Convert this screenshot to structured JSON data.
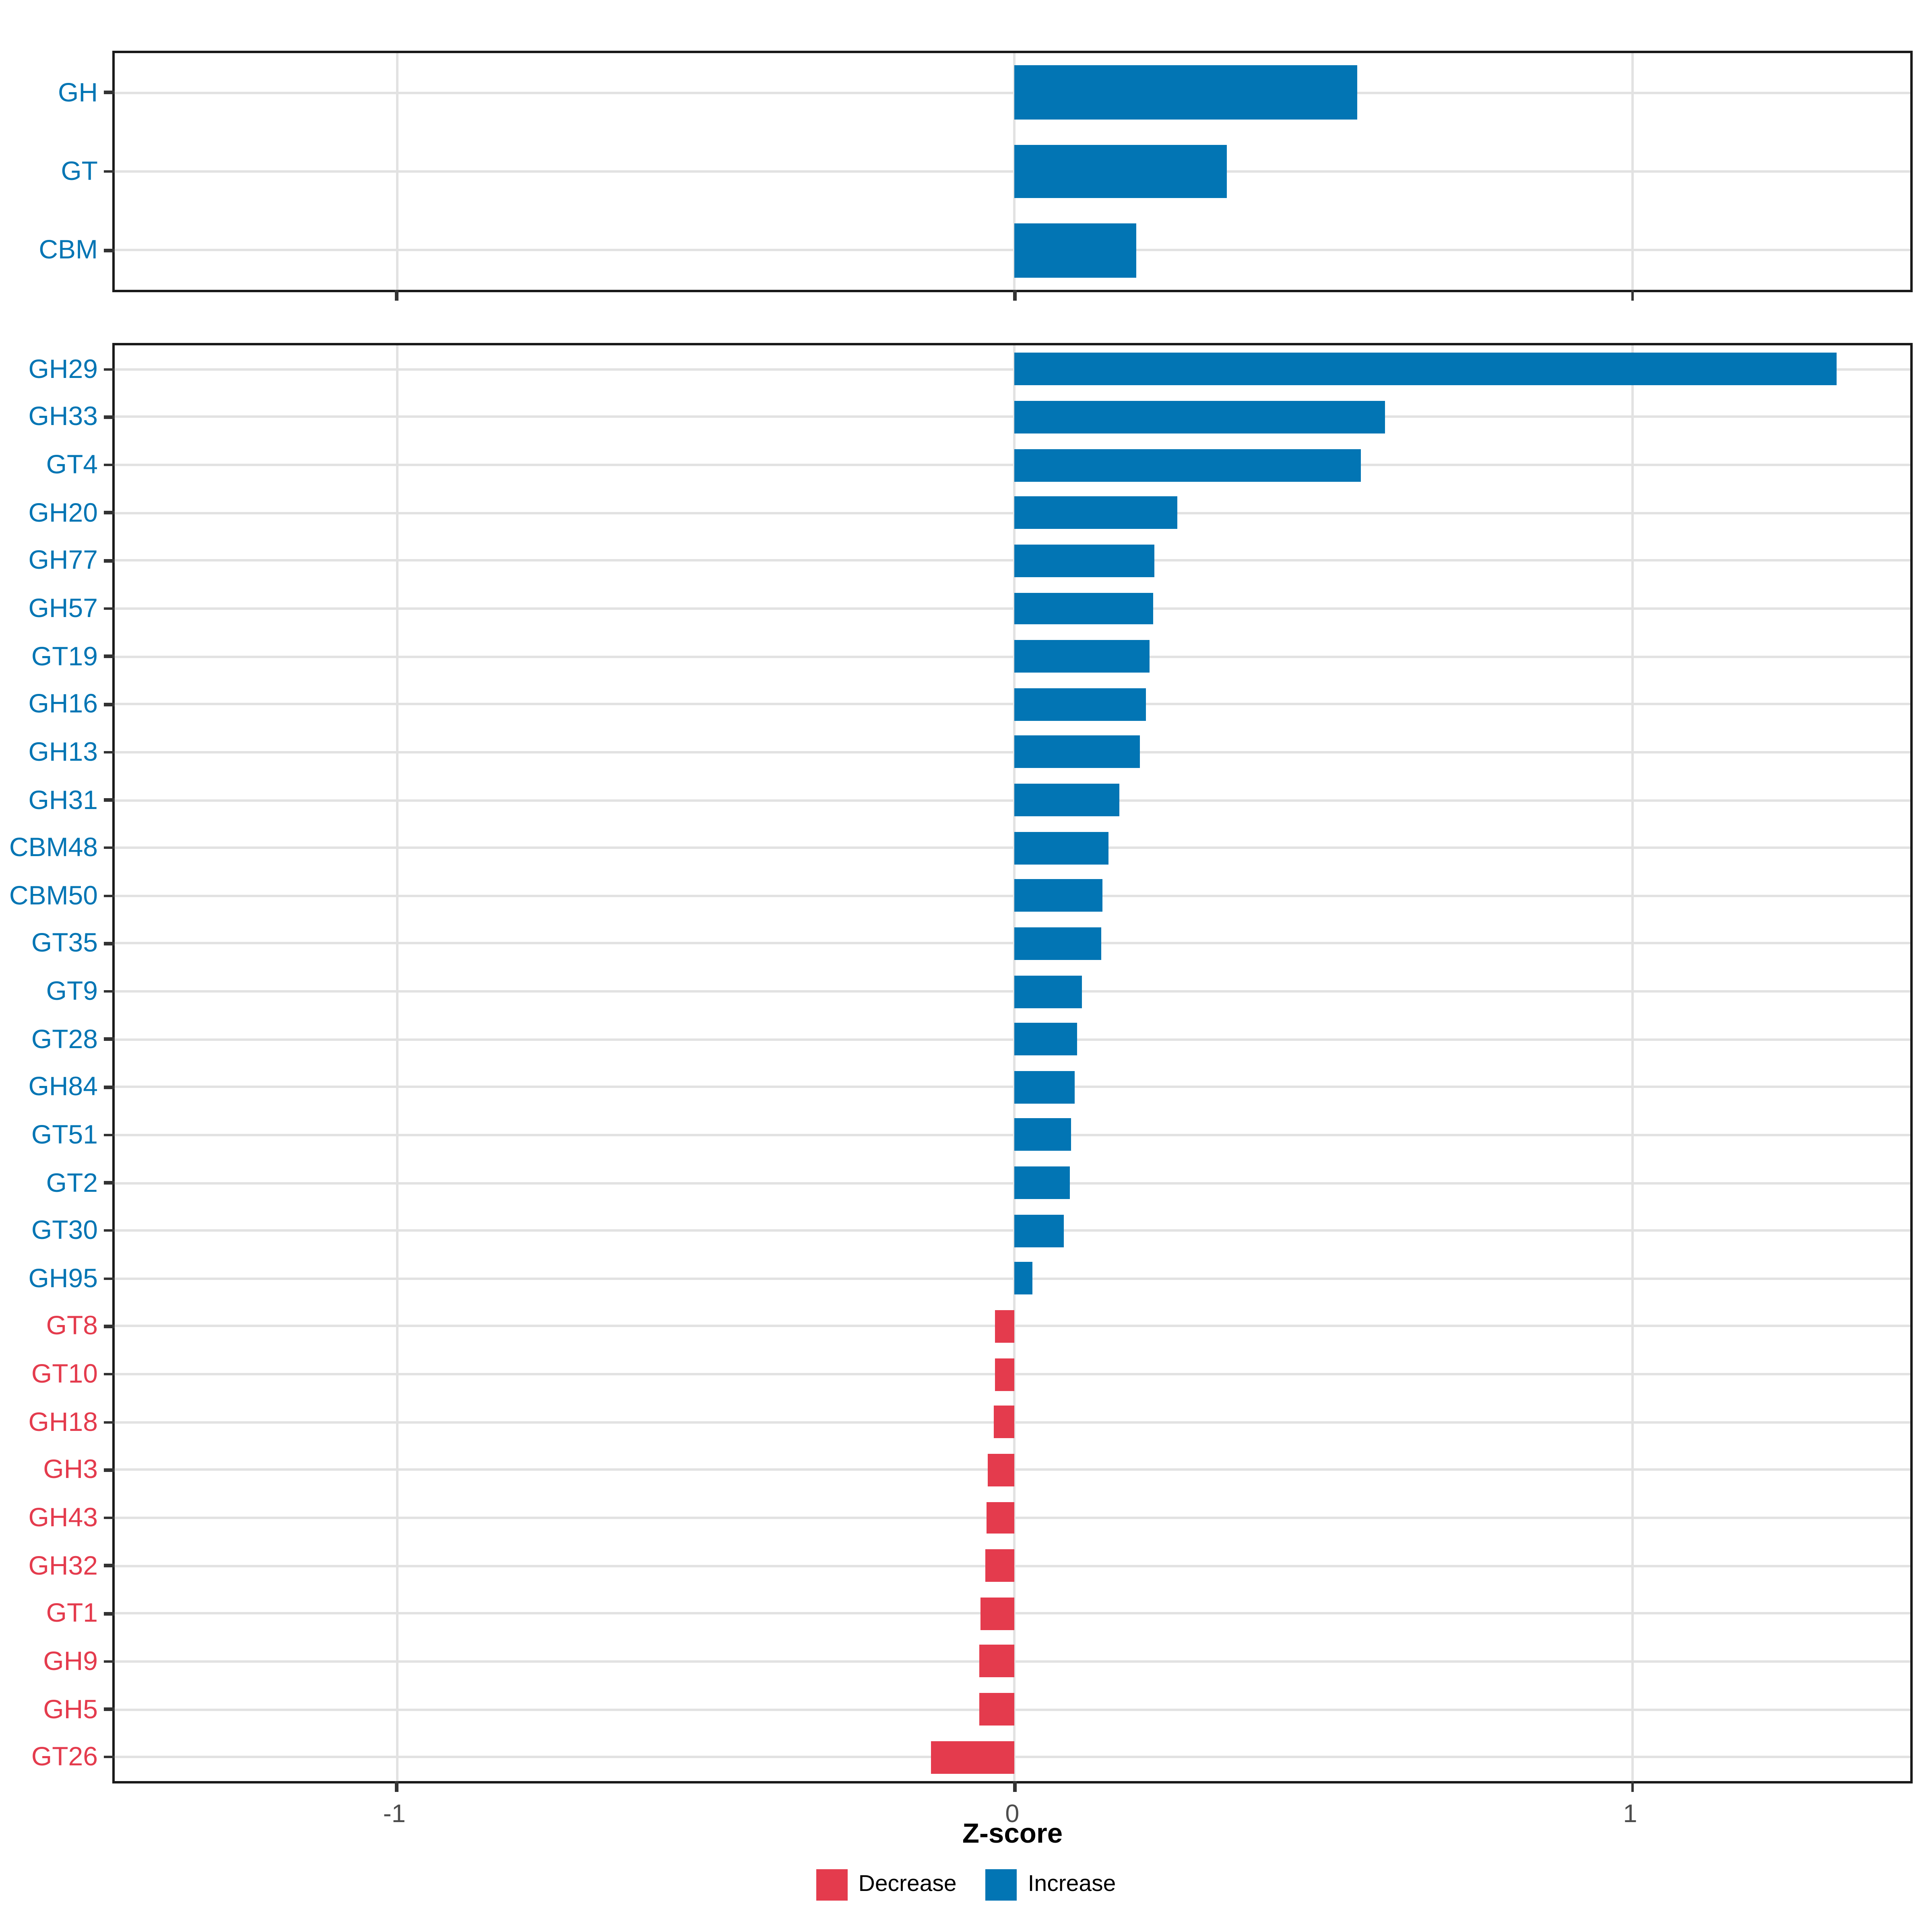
{
  "chart_data": {
    "type": "bar",
    "orientation": "horizontal",
    "title": "",
    "xlabel": "Z-score",
    "ylabel": "",
    "xlim": [
      -1.457,
      1.457
    ],
    "x_ticks": [
      -1,
      0,
      1
    ],
    "x_tick_labels": [
      "-1",
      "0",
      "1"
    ],
    "grid": "major",
    "bar_colors": {
      "increase": "#0275B4",
      "decrease": "#E43B4D"
    },
    "legend": {
      "position": "bottom",
      "entries": [
        {
          "label": "Decrease",
          "color": "#E43B4D"
        },
        {
          "label": "Increase",
          "color": "#0275B4"
        }
      ]
    },
    "panels": [
      {
        "name": "cazyme-classes",
        "categories": [
          "GH",
          "GT",
          "CBM"
        ],
        "values": [
          0.555,
          0.344,
          0.196
        ]
      },
      {
        "name": "cazyme-families",
        "categories": [
          "GH29",
          "GH33",
          "GT4",
          "GH20",
          "GH77",
          "GH57",
          "GT19",
          "GH16",
          "GH13",
          "GH31",
          "CBM48",
          "CBM50",
          "GT35",
          "GT9",
          "GT28",
          "GH84",
          "GT51",
          "GT2",
          "GT30",
          "GH95",
          "GT8",
          "GT10",
          "GH18",
          "GH3",
          "GH43",
          "GH32",
          "GT1",
          "GH9",
          "GH5",
          "GT26"
        ],
        "values": [
          1.33,
          0.6,
          0.56,
          0.263,
          0.227,
          0.225,
          0.219,
          0.212,
          0.203,
          0.17,
          0.152,
          0.143,
          0.14,
          0.109,
          0.101,
          0.097,
          0.092,
          0.089,
          0.079,
          0.029,
          -0.031,
          -0.032,
          -0.033,
          -0.044,
          -0.046,
          -0.047,
          -0.056,
          -0.057,
          -0.058,
          -0.136
        ]
      }
    ]
  }
}
